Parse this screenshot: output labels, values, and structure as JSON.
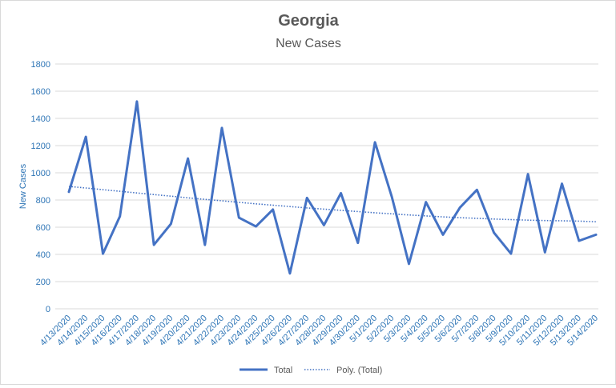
{
  "chart_data": {
    "type": "line",
    "title": "Georgia",
    "subtitle": "New Cases",
    "xlabel": "",
    "ylabel": "New Cases",
    "ylim": [
      0,
      1800
    ],
    "yticks": [
      "0",
      "200",
      "400",
      "600",
      "800",
      "1000",
      "1200",
      "1400",
      "1600",
      "1800"
    ],
    "grid": true,
    "legend_position": "bottom",
    "categories": [
      "4/13/2020",
      "4/14/2020",
      "4/15/2020",
      "4/16/2020",
      "4/17/2020",
      "4/18/2020",
      "4/19/2020",
      "4/20/2020",
      "4/21/2020",
      "4/22/2020",
      "4/23/2020",
      "4/24/2020",
      "4/25/2020",
      "4/26/2020",
      "4/27/2020",
      "4/28/2020",
      "4/29/2020",
      "4/30/2020",
      "5/1/2020",
      "5/2/2020",
      "5/3/2020",
      "5/4/2020",
      "5/5/2020",
      "5/6/2020",
      "5/7/2020",
      "5/8/2020",
      "5/9/2020",
      "5/10/2020",
      "5/11/2020",
      "5/12/2020",
      "5/13/2020",
      "5/14/2020"
    ],
    "series": [
      {
        "name": "Total",
        "color": "#4472c4",
        "style": "solid",
        "values": [
          860,
          1265,
          405,
          680,
          1525,
          470,
          625,
          1105,
          470,
          1330,
          670,
          605,
          730,
          260,
          815,
          615,
          850,
          485,
          1225,
          820,
          330,
          785,
          545,
          745,
          875,
          560,
          405,
          990,
          415,
          920,
          500,
          545
        ]
      },
      {
        "name": "Poly. (Total)",
        "color": "#4472c4",
        "style": "dotted",
        "values": [
          900,
          888,
          876,
          864,
          852,
          840,
          828,
          816,
          805,
          794,
          783,
          772,
          762,
          752,
          742,
          733,
          724,
          715,
          706,
          698,
          690,
          683,
          676,
          670,
          665,
          660,
          656,
          652,
          649,
          647,
          645,
          640
        ]
      }
    ]
  }
}
